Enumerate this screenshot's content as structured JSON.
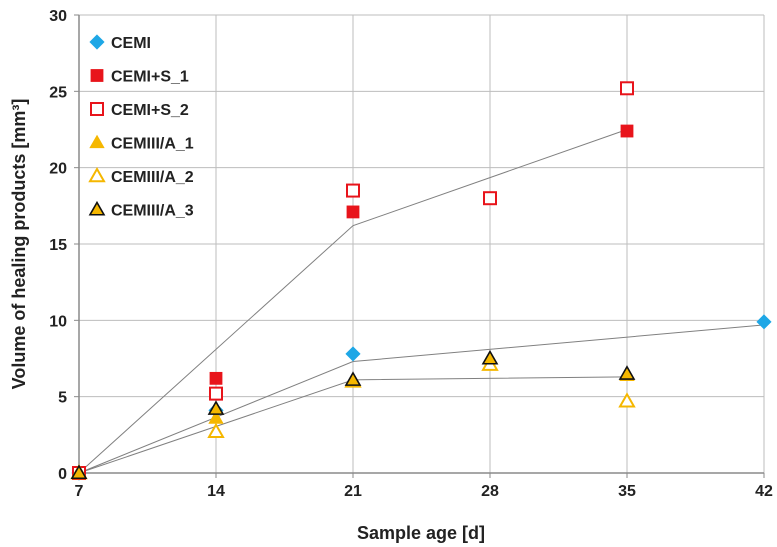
{
  "chart_data": {
    "type": "scatter",
    "xlabel": "Sample age [d]",
    "ylabel": "Volume of healing products [mm³]",
    "xlim": [
      7,
      42
    ],
    "ylim": [
      0,
      30
    ],
    "x_ticks": [
      "7",
      "14",
      "21",
      "28",
      "35",
      "42"
    ],
    "y_ticks": [
      "0",
      "5",
      "10",
      "15",
      "20",
      "25",
      "30"
    ],
    "grid": true,
    "legend_position": "top-left",
    "series": [
      {
        "name": "CEMI",
        "marker": "diamond",
        "filled": true,
        "color": "#1ea7e6",
        "x": [
          7,
          14,
          21,
          42
        ],
        "y": [
          0,
          4.1,
          7.8,
          9.9
        ]
      },
      {
        "name": "CEMI+S_1",
        "marker": "square",
        "filled": true,
        "color": "#e8141b",
        "x": [
          7,
          14,
          21,
          35
        ],
        "y": [
          0,
          6.2,
          17.1,
          22.4
        ]
      },
      {
        "name": "CEMI+S_2",
        "marker": "square",
        "filled": false,
        "color": "#e8141b",
        "x": [
          7,
          14,
          21,
          28,
          35
        ],
        "y": [
          0,
          5.2,
          18.5,
          18.0,
          25.2
        ]
      },
      {
        "name": "CEMIII/A_1",
        "marker": "triangle",
        "filled": true,
        "color": "#f5b700",
        "x": [
          7,
          14,
          21,
          28,
          35
        ],
        "y": [
          0,
          3.6,
          6.1,
          7.5,
          6.4
        ]
      },
      {
        "name": "CEMIII/A_2",
        "marker": "triangle",
        "filled": false,
        "color": "#f5b700",
        "x": [
          7,
          14,
          21,
          28,
          35
        ],
        "y": [
          0,
          2.7,
          6.0,
          7.1,
          4.7
        ]
      },
      {
        "name": "CEMIII/A_3",
        "marker": "triangle",
        "filled": true,
        "color": "#f5b700",
        "stroke": "#111111",
        "x": [
          7,
          14,
          21,
          28,
          35
        ],
        "y": [
          0,
          4.2,
          6.1,
          7.5,
          6.5
        ]
      }
    ],
    "trendlines": [
      {
        "x": [
          7,
          21,
          42
        ],
        "y": [
          0,
          7.3,
          9.7
        ]
      },
      {
        "x": [
          7,
          21,
          35
        ],
        "y": [
          0,
          16.2,
          22.5
        ]
      },
      {
        "x": [
          7,
          21,
          35
        ],
        "y": [
          0,
          6.1,
          6.3
        ]
      }
    ]
  }
}
